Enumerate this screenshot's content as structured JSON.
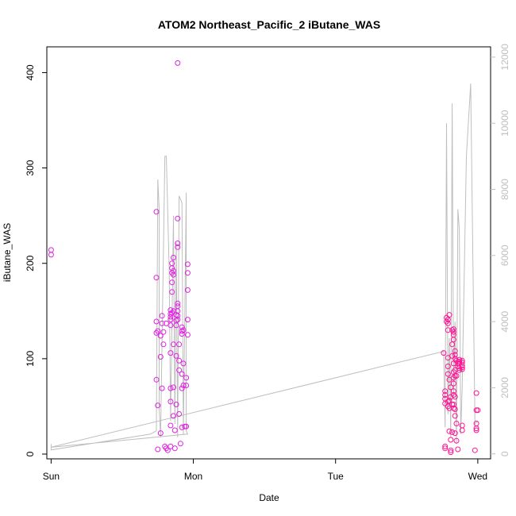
{
  "chart_data": {
    "type": "scatter",
    "title": "ATOM2 Northeast_Pacific_2 iButane_WAS",
    "xlabel": "Date",
    "ylabel": "iButane_WAS",
    "x_ticks": [
      "Sun",
      "Mon",
      "Tue",
      "Wed"
    ],
    "xlim_days": [
      -0.03,
      3.09
    ],
    "ylim": [
      -5,
      427
    ],
    "y_ticks": [
      0,
      100,
      200,
      300,
      400
    ],
    "right_axis": {
      "ylim": [
        -150,
        12310
      ],
      "ticks": [
        0,
        2000,
        4000,
        6000,
        8000,
        10000,
        12000
      ],
      "color": "#bebebe"
    },
    "colors": {
      "points_left": "#e020e0",
      "points_right": "#ff1493",
      "line": "#bebebe",
      "axis": "#000000"
    },
    "series": [
      {
        "marker": "circle-open",
        "points": [
          [
            0.0,
            214
          ],
          [
            0.0,
            209
          ],
          [
            0.74,
            254
          ],
          [
            0.74,
            185
          ],
          [
            0.74,
            139
          ],
          [
            0.74,
            127
          ],
          [
            0.75,
            129
          ],
          [
            0.74,
            78
          ],
          [
            0.75,
            51
          ],
          [
            0.75,
            5
          ],
          [
            0.77,
            124
          ],
          [
            0.77,
            102
          ],
          [
            0.78,
            145
          ],
          [
            0.78,
            137
          ],
          [
            0.78,
            69
          ],
          [
            0.77,
            22
          ],
          [
            0.79,
            128
          ],
          [
            0.79,
            115
          ],
          [
            0.8,
            8
          ],
          [
            0.81,
            137
          ],
          [
            0.81,
            6
          ],
          [
            0.82,
            4
          ],
          [
            0.84,
            151
          ],
          [
            0.84,
            147
          ],
          [
            0.84,
            144
          ],
          [
            0.84,
            141
          ],
          [
            0.84,
            135
          ],
          [
            0.84,
            106
          ],
          [
            0.84,
            55
          ],
          [
            0.84,
            30
          ],
          [
            0.84,
            8
          ],
          [
            0.84,
            69
          ],
          [
            0.85,
            200
          ],
          [
            0.85,
            195
          ],
          [
            0.85,
            190
          ],
          [
            0.85,
            180
          ],
          [
            0.85,
            170
          ],
          [
            0.85,
            148
          ],
          [
            0.86,
            206
          ],
          [
            0.86,
            192
          ],
          [
            0.86,
            188
          ],
          [
            0.86,
            150
          ],
          [
            0.86,
            115
          ],
          [
            0.86,
            70
          ],
          [
            0.86,
            40
          ],
          [
            0.87,
            25
          ],
          [
            0.87,
            6
          ],
          [
            0.88,
            146
          ],
          [
            0.88,
            140
          ],
          [
            0.88,
            135
          ],
          [
            0.88,
            103
          ],
          [
            0.88,
            52
          ],
          [
            0.89,
            410
          ],
          [
            0.89,
            247
          ],
          [
            0.89,
            221
          ],
          [
            0.89,
            217
          ],
          [
            0.89,
            158
          ],
          [
            0.89,
            155
          ],
          [
            0.89,
            150
          ],
          [
            0.89,
            145
          ],
          [
            0.89,
            141
          ],
          [
            0.9,
            115
          ],
          [
            0.9,
            98
          ],
          [
            0.9,
            88
          ],
          [
            0.9,
            42
          ],
          [
            0.91,
            11
          ],
          [
            0.92,
            133
          ],
          [
            0.92,
            129
          ],
          [
            0.92,
            126
          ],
          [
            0.92,
            84
          ],
          [
            0.92,
            69
          ],
          [
            0.92,
            28
          ],
          [
            0.93,
            130
          ],
          [
            0.93,
            95
          ],
          [
            0.93,
            72
          ],
          [
            0.94,
            29
          ],
          [
            0.95,
            29
          ],
          [
            0.95,
            80
          ],
          [
            0.95,
            72
          ],
          [
            0.96,
            199
          ],
          [
            0.96,
            190
          ],
          [
            0.96,
            172
          ],
          [
            0.96,
            141
          ],
          [
            0.96,
            125
          ]
        ]
      },
      {
        "marker": "circle-open",
        "points": [
          [
            2.76,
            106
          ],
          [
            2.77,
            66
          ],
          [
            2.77,
            62
          ],
          [
            2.77,
            58
          ],
          [
            2.77,
            53
          ],
          [
            2.77,
            8
          ],
          [
            2.77,
            6
          ],
          [
            2.78,
            143
          ],
          [
            2.78,
            139
          ],
          [
            2.79,
            141
          ],
          [
            2.79,
            137
          ],
          [
            2.79,
            130
          ],
          [
            2.79,
            101
          ],
          [
            2.79,
            92
          ],
          [
            2.79,
            84
          ],
          [
            2.79,
            55
          ],
          [
            2.79,
            50
          ],
          [
            2.8,
            146
          ],
          [
            2.8,
            78
          ],
          [
            2.8,
            56
          ],
          [
            2.8,
            48
          ],
          [
            2.8,
            24
          ],
          [
            2.81,
            70
          ],
          [
            2.81,
            60
          ],
          [
            2.81,
            15
          ],
          [
            2.81,
            4
          ],
          [
            2.81,
            2
          ],
          [
            2.82,
            130
          ],
          [
            2.82,
            115
          ],
          [
            2.82,
            103
          ],
          [
            2.82,
            52
          ],
          [
            2.82,
            23
          ],
          [
            2.83,
            131
          ],
          [
            2.83,
            128
          ],
          [
            2.83,
            125
          ],
          [
            2.83,
            120
          ],
          [
            2.83,
            95
          ],
          [
            2.83,
            86
          ],
          [
            2.83,
            80
          ],
          [
            2.83,
            74
          ],
          [
            2.83,
            66
          ],
          [
            2.83,
            62
          ],
          [
            2.83,
            52
          ],
          [
            2.83,
            48
          ],
          [
            2.84,
            108
          ],
          [
            2.84,
            104
          ],
          [
            2.84,
            100
          ],
          [
            2.84,
            88
          ],
          [
            2.84,
            82
          ],
          [
            2.84,
            60
          ],
          [
            2.84,
            47
          ],
          [
            2.84,
            40
          ],
          [
            2.84,
            22
          ],
          [
            2.85,
            98
          ],
          [
            2.85,
            82
          ],
          [
            2.85,
            32
          ],
          [
            2.85,
            14
          ],
          [
            2.86,
            95
          ],
          [
            2.86,
            92
          ],
          [
            2.86,
            5
          ],
          [
            2.87,
            99
          ],
          [
            2.87,
            97
          ],
          [
            2.87,
            95
          ],
          [
            2.87,
            90
          ],
          [
            2.87,
            88
          ],
          [
            2.89,
            98
          ],
          [
            2.89,
            96
          ],
          [
            2.89,
            93
          ],
          [
            2.89,
            91
          ],
          [
            2.89,
            89
          ],
          [
            2.89,
            30
          ],
          [
            2.89,
            25
          ],
          [
            2.98,
            4
          ],
          [
            2.99,
            64
          ],
          [
            2.99,
            46
          ],
          [
            2.99,
            32
          ],
          [
            2.99,
            27
          ],
          [
            2.99,
            25
          ],
          [
            3.0,
            46
          ]
        ]
      },
      {
        "marker": "line",
        "axis": "right",
        "points": [
          [
            0.0,
            300
          ],
          [
            0.0,
            120
          ],
          [
            0.7,
            600
          ],
          [
            0.74,
            700
          ],
          [
            0.75,
            8300
          ],
          [
            0.76,
            7400
          ],
          [
            0.76,
            1400
          ],
          [
            0.77,
            500
          ],
          [
            0.8,
            9000
          ],
          [
            0.81,
            9000
          ],
          [
            0.83,
            5600
          ],
          [
            0.84,
            1000
          ],
          [
            0.86,
            7200
          ],
          [
            0.87,
            900
          ],
          [
            0.88,
            6400
          ],
          [
            0.89,
            500
          ],
          [
            0.9,
            7800
          ],
          [
            0.92,
            7600
          ],
          [
            0.93,
            600
          ],
          [
            0.95,
            7900
          ],
          [
            0.95,
            700
          ],
          [
            0.96,
            600
          ],
          [
            0.0,
            200
          ],
          [
            2.76,
            3100
          ],
          [
            2.77,
            800
          ],
          [
            2.78,
            10000
          ],
          [
            2.79,
            1200
          ],
          [
            2.8,
            3500
          ],
          [
            2.81,
            500
          ],
          [
            2.82,
            10600
          ],
          [
            2.83,
            1800
          ],
          [
            2.84,
            4000
          ],
          [
            2.85,
            300
          ],
          [
            2.86,
            7400
          ],
          [
            2.87,
            6800
          ],
          [
            2.88,
            600
          ],
          [
            2.89,
            2000
          ],
          [
            2.92,
            9000
          ],
          [
            2.95,
            11200
          ],
          [
            2.98,
            900
          ],
          [
            3.0,
            1000
          ]
        ]
      }
    ]
  }
}
